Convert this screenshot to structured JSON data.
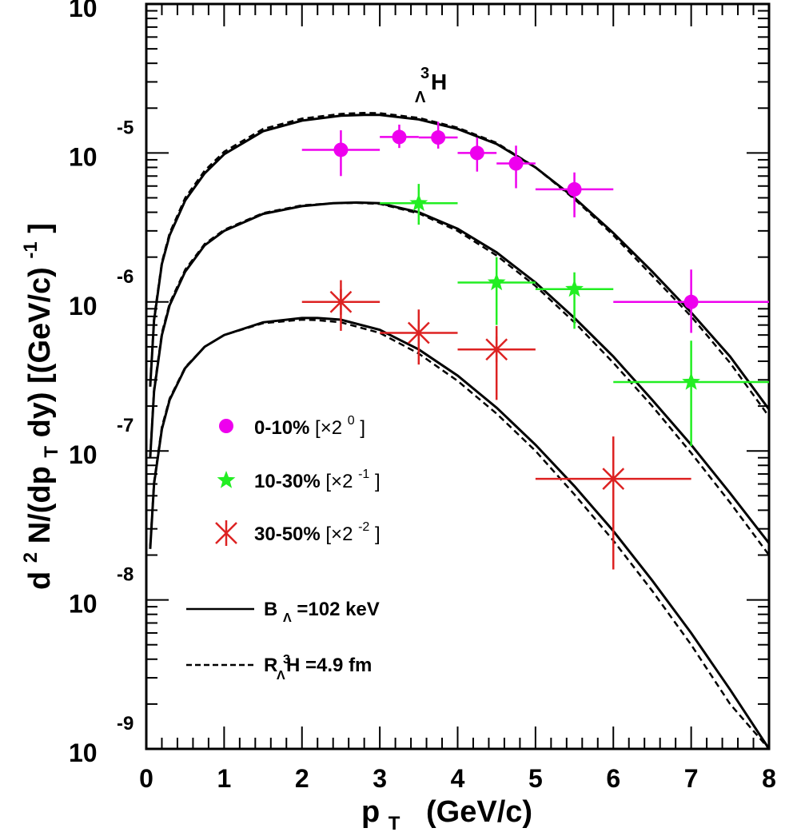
{
  "chart_data": {
    "type": "scatter",
    "title": "H",
    "title_super": "3",
    "title_sub": "Λ",
    "xlabel": "p",
    "xlabel_sub": "T",
    "xlabel_unit": "(GeV/c)",
    "ylabel": "d2N/(dpTdy) [(GeV/c)-1]",
    "ylabel_parts": {
      "a": "d",
      "b": "2",
      "c": "N/(dp",
      "d": "T",
      "e": "dy)  [(GeV/c)",
      "f": "-1",
      "g": "]"
    },
    "xlim": [
      0,
      8
    ],
    "ylim_log10": [
      -9,
      -4
    ],
    "x_ticks": [
      "0",
      "1",
      "2",
      "3",
      "4",
      "5",
      "6",
      "7",
      "8"
    ],
    "y_ticks": [
      {
        "base": "10",
        "exp": "-4"
      },
      {
        "base": "10",
        "exp": "-5"
      },
      {
        "base": "10",
        "exp": "-6"
      },
      {
        "base": "10",
        "exp": "-7"
      },
      {
        "base": "10",
        "exp": "-8"
      },
      {
        "base": "10",
        "exp": "-9"
      }
    ],
    "legend_placement": "left-middle",
    "series": [
      {
        "name": "0-10% [×2^0]",
        "label": "0-10% ",
        "scale_text": "[×2",
        "scale_exp": "0",
        "scale_close": "]",
        "marker": "circle",
        "color": "#ee00ee",
        "points": [
          {
            "x": 2.5,
            "y": 1.05e-05,
            "xerr": 0.5,
            "ylo": 7e-06,
            "yhi": 1.42e-05
          },
          {
            "x": 3.25,
            "y": 1.28e-05,
            "xerr": 0.25,
            "ylo": 1.08e-05,
            "yhi": 1.55e-05
          },
          {
            "x": 3.75,
            "y": 1.27e-05,
            "xerr": 0.25,
            "ylo": 1.07e-05,
            "yhi": 1.62e-05
          },
          {
            "x": 4.25,
            "y": 1e-05,
            "xerr": 0.25,
            "ylo": 7.5e-06,
            "yhi": 1.27e-05
          },
          {
            "x": 4.75,
            "y": 8.5e-06,
            "xerr": 0.25,
            "ylo": 5.8e-06,
            "yhi": 1.12e-05
          },
          {
            "x": 5.5,
            "y": 5.7e-06,
            "xerr": 0.5,
            "ylo": 3.7e-06,
            "yhi": 7.4e-06
          },
          {
            "x": 7.0,
            "y": 1e-06,
            "xerr": 1.0,
            "ylo": 6.2e-07,
            "yhi": 1.65e-06
          }
        ]
      },
      {
        "name": "10-30% [×2^-1]",
        "label": "10-30% ",
        "scale_text": "[×2",
        "scale_exp": "-1",
        "scale_close": "]",
        "marker": "star",
        "color": "#22ee22",
        "points": [
          {
            "x": 3.5,
            "y": 4.6e-06,
            "xerr": 0.5,
            "ylo": 3.3e-06,
            "yhi": 6.2e-06
          },
          {
            "x": 4.5,
            "y": 1.35e-06,
            "xerr": 0.5,
            "ylo": 7e-07,
            "yhi": 2e-06
          },
          {
            "x": 5.5,
            "y": 1.22e-06,
            "xerr": 0.5,
            "ylo": 6.6e-07,
            "yhi": 1.58e-06
          },
          {
            "x": 7.0,
            "y": 2.9e-07,
            "xerr": 1.0,
            "ylo": 1.08e-07,
            "yhi": 5.5e-07
          }
        ]
      },
      {
        "name": "30-50% [×2^-2]",
        "label": "30-50% ",
        "scale_text": "[×2",
        "scale_exp": "-2",
        "scale_close": "]",
        "marker": "asterisk",
        "color": "#dd2222",
        "points": [
          {
            "x": 2.5,
            "y": 1e-06,
            "xerr": 0.5,
            "ylo": 6.4e-07,
            "yhi": 1.4e-06
          },
          {
            "x": 3.5,
            "y": 6.2e-07,
            "xerr": 0.5,
            "ylo": 3.8e-07,
            "yhi": 8.9e-07
          },
          {
            "x": 4.5,
            "y": 4.8e-07,
            "xerr": 0.5,
            "ylo": 2.2e-07,
            "yhi": 6.9e-07
          },
          {
            "x": 6.0,
            "y": 6.5e-08,
            "xerr": 1.0,
            "ylo": 1.6e-08,
            "yhi": 1.25e-07
          }
        ]
      }
    ],
    "curves": [
      {
        "group": "0-10%",
        "style": "solid",
        "x": [
          0.05,
          0.1,
          0.2,
          0.3,
          0.5,
          0.75,
          1.0,
          1.5,
          2.0,
          2.5,
          2.8,
          3.0,
          3.5,
          4.0,
          4.5,
          5.0,
          5.5,
          6.0,
          6.5,
          7.0,
          7.5,
          8.0
        ],
        "y": [
          2.7e-07,
          7.5e-07,
          1.8e-06,
          2.8e-06,
          4.8e-06,
          7.3e-06,
          9.8e-06,
          1.4e-05,
          1.65e-05,
          1.78e-05,
          1.8e-05,
          1.8e-05,
          1.68e-05,
          1.45e-05,
          1.15e-05,
          8e-06,
          5e-06,
          2.9e-06,
          1.6e-06,
          8.5e-07,
          4.3e-07,
          1.9e-07
        ]
      },
      {
        "group": "0-10%",
        "style": "dashed",
        "x": [
          0.05,
          0.1,
          0.2,
          0.3,
          0.5,
          0.75,
          1.0,
          1.5,
          2.0,
          2.5,
          2.8,
          3.0,
          3.5,
          4.0,
          4.5,
          5.0,
          5.5,
          6.0,
          6.5,
          7.0,
          7.5,
          8.0
        ],
        "y": [
          2.8e-07,
          7.8e-07,
          1.85e-06,
          2.9e-06,
          5e-06,
          7.6e-06,
          1.02e-05,
          1.45e-05,
          1.7e-05,
          1.83e-05,
          1.86e-05,
          1.85e-05,
          1.72e-05,
          1.48e-05,
          1.17e-05,
          8e-06,
          4.9e-06,
          2.8e-06,
          1.5e-06,
          8e-07,
          3.9e-07,
          1.7e-07
        ]
      },
      {
        "group": "10-30%",
        "style": "solid",
        "x": [
          0.05,
          0.1,
          0.2,
          0.3,
          0.5,
          0.75,
          1.0,
          1.5,
          2.0,
          2.4,
          2.7,
          3.0,
          3.5,
          4.0,
          4.5,
          5.0,
          5.5,
          6.0,
          6.5,
          7.0,
          7.5,
          8.0
        ],
        "y": [
          9e-08,
          2.5e-07,
          6e-07,
          9.5e-07,
          1.6e-06,
          2.4e-06,
          3e-06,
          3.9e-06,
          4.4e-06,
          4.6e-06,
          4.65e-06,
          4.6e-06,
          4e-06,
          3.1e-06,
          2.15e-06,
          1.35e-06,
          7.8e-07,
          4.3e-07,
          2.2e-07,
          1.1e-07,
          5.2e-08,
          2.4e-08
        ]
      },
      {
        "group": "10-30%",
        "style": "dashed",
        "x": [
          0.05,
          0.1,
          0.2,
          0.3,
          0.5,
          0.75,
          1.0,
          1.5,
          2.0,
          2.4,
          2.7,
          3.0,
          3.5,
          4.0,
          4.5,
          5.0,
          5.5,
          6.0,
          6.5,
          7.0,
          7.5,
          8.0
        ],
        "y": [
          9.3e-08,
          2.6e-07,
          6.2e-07,
          9.8e-07,
          1.65e-06,
          2.45e-06,
          3.05e-06,
          3.95e-06,
          4.45e-06,
          4.6e-06,
          4.62e-06,
          4.55e-06,
          3.93e-06,
          3e-06,
          2.05e-06,
          1.28e-06,
          7.3e-07,
          3.9e-07,
          2e-07,
          9.7e-08,
          4.5e-08,
          2e-08
        ]
      },
      {
        "group": "30-50%",
        "style": "solid",
        "x": [
          0.05,
          0.1,
          0.2,
          0.3,
          0.5,
          0.75,
          1.0,
          1.5,
          2.0,
          2.2,
          2.5,
          3.0,
          3.5,
          4.0,
          4.5,
          5.0,
          5.5,
          6.0,
          6.5,
          7.0,
          7.5,
          8.0
        ],
        "y": [
          2.2e-08,
          6e-08,
          1.4e-07,
          2.2e-07,
          3.6e-07,
          5e-07,
          6e-07,
          7.3e-07,
          7.8e-07,
          7.8e-07,
          7.6e-07,
          6.5e-07,
          4.8e-07,
          3.2e-07,
          1.95e-07,
          1.1e-07,
          5.8e-08,
          2.9e-08,
          1.35e-08,
          6e-09,
          2.5e-09,
          1e-09
        ]
      },
      {
        "group": "30-50%",
        "style": "dashed",
        "x": [
          0.05,
          0.1,
          0.2,
          0.3,
          0.5,
          0.75,
          1.0,
          1.5,
          2.0,
          2.2,
          2.5,
          3.0,
          3.5,
          4.0,
          4.5,
          5.0,
          5.5,
          6.0,
          6.5,
          7.0,
          7.5,
          8.0
        ],
        "y": [
          2.3e-08,
          6.2e-08,
          1.45e-07,
          2.25e-07,
          3.65e-07,
          5e-07,
          6e-07,
          7.2e-07,
          7.6e-07,
          7.55e-07,
          7.3e-07,
          6.2e-07,
          4.5e-07,
          2.95e-07,
          1.78e-07,
          1e-07,
          5.1e-08,
          2.5e-08,
          1.15e-08,
          5e-09,
          2e-09,
          8e-10
        ]
      }
    ],
    "line_legend": [
      {
        "style": "solid",
        "label_a": "B",
        "label_sub": "Λ",
        "label_b": "=102 keV"
      },
      {
        "style": "dashed",
        "label_a": "R",
        "label_sup": "3",
        "label_sub": "Λ",
        "label_b": "H",
        "label_c": " =4.9 fm"
      }
    ]
  }
}
